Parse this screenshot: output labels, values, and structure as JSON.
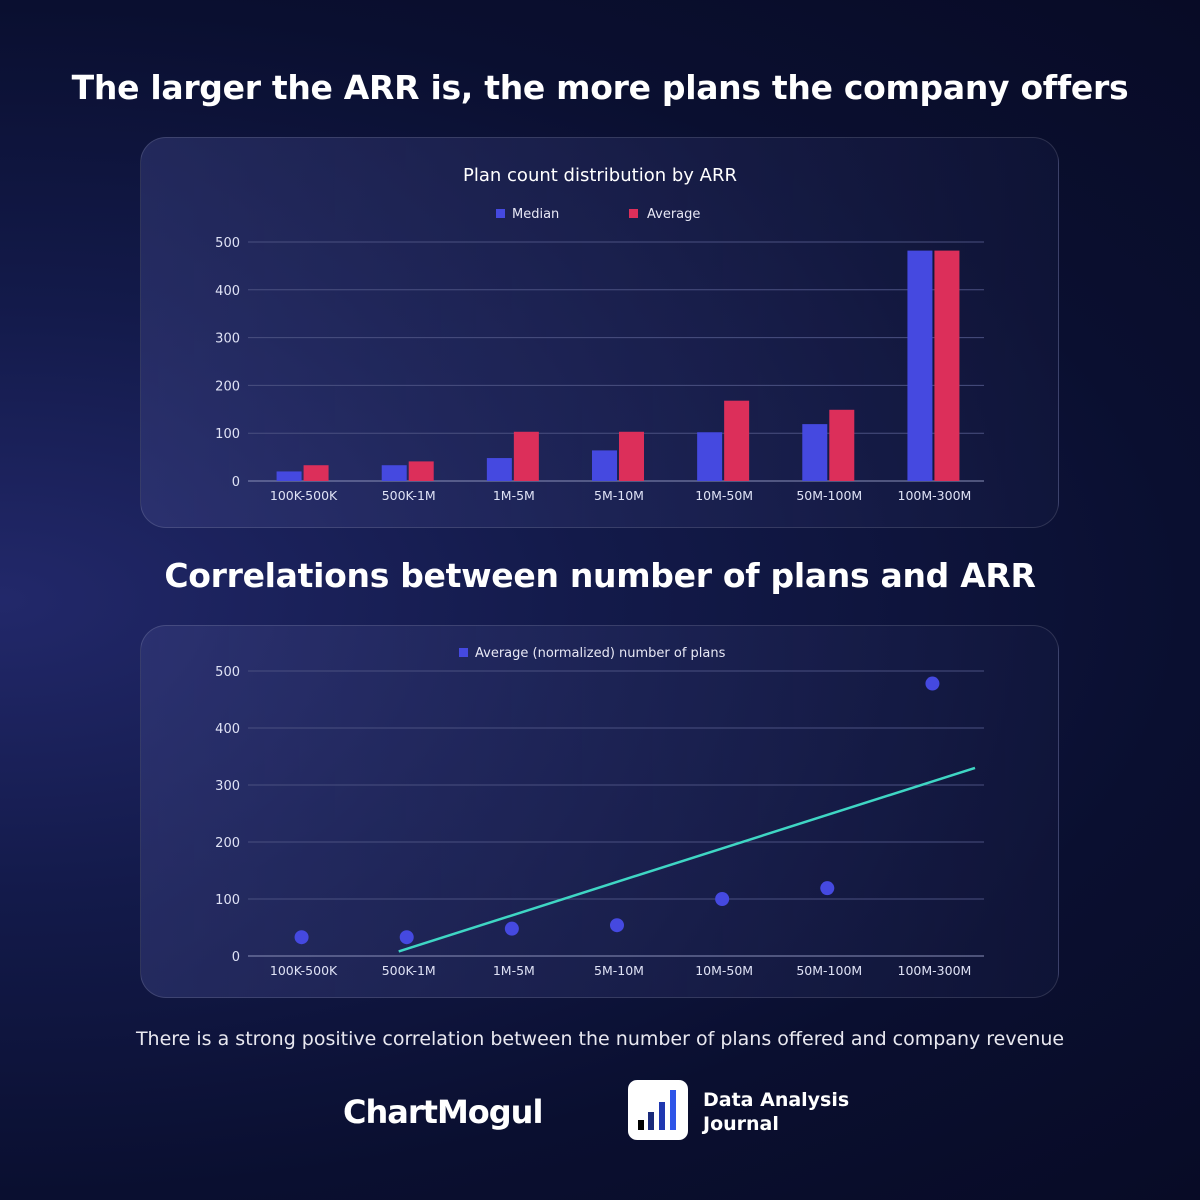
{
  "titles": {
    "top": "The larger the ARR is, the more plans the company offers",
    "bottom": "Correlations between number of plans and ARR"
  },
  "footnote": "There is a strong positive correlation between the number of plans offered and company revenue",
  "logos": {
    "chartmogul": "ChartMogul",
    "daj_line1": "Data Analysis",
    "daj_line2": "Journal"
  },
  "colors": {
    "median": "#4549e0",
    "average": "#dc2f5a",
    "scatter": "#4549e0",
    "trend": "#3fd6c4"
  },
  "chart_data": [
    {
      "type": "bar",
      "title": "Plan count distribution by ARR",
      "categories": [
        "100K-500K",
        "500K-1M",
        "1M-5M",
        "5M-10M",
        "10M-50M",
        "50M-100M",
        "100M-300M"
      ],
      "series": [
        {
          "name": "Median",
          "values": [
            20,
            33,
            48,
            64,
            102,
            119,
            482
          ]
        },
        {
          "name": "Average",
          "values": [
            33,
            41,
            103,
            103,
            168,
            149,
            482
          ]
        }
      ],
      "ylim": [
        0,
        500
      ],
      "yticks": [
        0,
        100,
        200,
        300,
        400,
        500
      ],
      "grid": true,
      "legend": "top"
    },
    {
      "type": "scatter",
      "categories": [
        "100K-500K",
        "500K-1M",
        "1M-5M",
        "5M-10M",
        "10M-50M",
        "50M-100M",
        "100M-300M"
      ],
      "series": [
        {
          "name": "Average (normalized) number of plans",
          "values": [
            33,
            33,
            48,
            54,
            100,
            119,
            478
          ]
        }
      ],
      "trendline": {
        "start": {
          "category": "500K-1M",
          "value": 8
        },
        "end_value": 330
      },
      "ylim": [
        0,
        500
      ],
      "yticks": [
        0,
        100,
        200,
        300,
        400,
        500
      ],
      "grid": true,
      "legend": "top"
    }
  ]
}
